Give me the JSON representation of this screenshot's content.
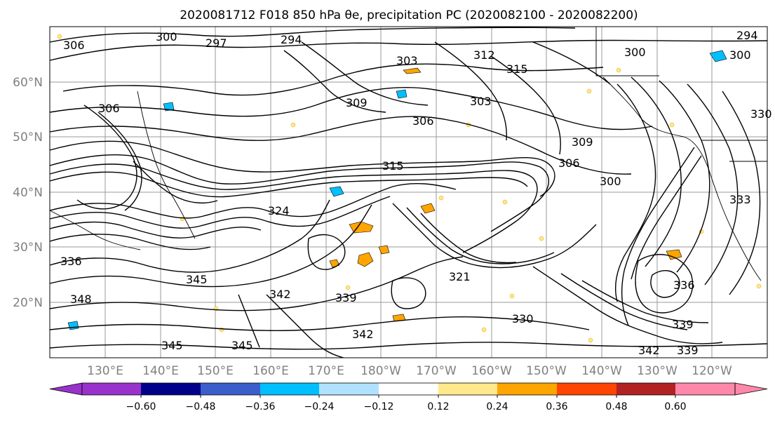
{
  "title": "2020081712 F018 850 hPa θe, precipitation PC (2020082100 - 2020082200)",
  "map": {
    "lat_labels": [
      "60°N",
      "50°N",
      "40°N",
      "30°N",
      "20°N"
    ],
    "lon_labels": [
      "130°E",
      "140°E",
      "150°E",
      "160°E",
      "170°E",
      "180°W",
      "170°W",
      "160°W",
      "150°W",
      "140°W",
      "130°W",
      "120°W"
    ],
    "contour_labels": [
      "306",
      "300",
      "297",
      "294",
      "303",
      "312",
      "315",
      "300",
      "294",
      "300",
      "330",
      "306",
      "309",
      "306",
      "303",
      "309",
      "306",
      "315",
      "300",
      "324",
      "336",
      "345",
      "342",
      "339",
      "321",
      "330",
      "339",
      "342",
      "339",
      "336",
      "345",
      "345",
      "348",
      "342",
      "333"
    ],
    "precip_colors": {
      "positive_light": "#ffe98a",
      "positive_mid": "#ffa500",
      "negative_light": "#aee4ff",
      "negative_mid": "#00bfff"
    }
  },
  "colorbar": {
    "ticks": [
      "−0.60",
      "−0.48",
      "−0.36",
      "−0.24",
      "−0.12",
      "0.12",
      "0.24",
      "0.36",
      "0.48",
      "0.60"
    ],
    "colors": [
      "#9932cc",
      "#00008b",
      "#3a5fcd",
      "#00bfff",
      "#b0e2ff",
      "#ffffff",
      "#ffe98a",
      "#ffa500",
      "#ff4500",
      "#b22222",
      "#ff88aa",
      "#ff88aa"
    ]
  }
}
